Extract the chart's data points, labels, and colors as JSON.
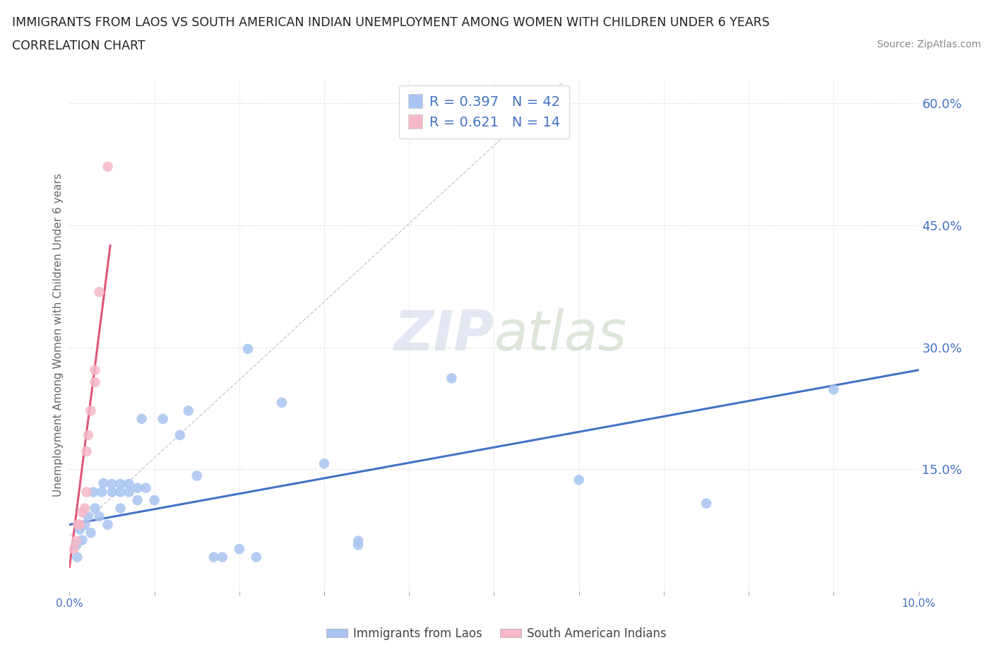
{
  "title_line1": "IMMIGRANTS FROM LAOS VS SOUTH AMERICAN INDIAN UNEMPLOYMENT AMONG WOMEN WITH CHILDREN UNDER 6 YEARS",
  "title_line2": "CORRELATION CHART",
  "source": "Source: ZipAtlas.com",
  "ylabel_label": "Unemployment Among Women with Children Under 6 years",
  "xmin": 0.0,
  "xmax": 0.1,
  "ymin": 0.0,
  "ymax": 0.63,
  "watermark_part1": "ZIP",
  "watermark_part2": "atlas",
  "legend_blue_label": "Immigrants from Laos",
  "legend_pink_label": "South American Indians",
  "R_blue": 0.397,
  "N_blue": 42,
  "R_pink": 0.621,
  "N_pink": 14,
  "blue_color": "#a8c4f0",
  "pink_color": "#f5b8c8",
  "blue_line_color": "#4472c4",
  "pink_line_color": "#e05578",
  "diag_color": "#cccccc",
  "grid_color": "#e8e8e8",
  "tick_label_color": "#4472c4",
  "title_color": "#222222",
  "source_color": "#888888",
  "ylabel_color": "#666666",
  "blue_scatter": [
    [
      0.0008,
      0.057
    ],
    [
      0.0009,
      0.042
    ],
    [
      0.0012,
      0.076
    ],
    [
      0.0015,
      0.063
    ],
    [
      0.0018,
      0.082
    ],
    [
      0.0022,
      0.092
    ],
    [
      0.0025,
      0.072
    ],
    [
      0.0028,
      0.122
    ],
    [
      0.003,
      0.102
    ],
    [
      0.0035,
      0.092
    ],
    [
      0.0038,
      0.122
    ],
    [
      0.004,
      0.133
    ],
    [
      0.0045,
      0.082
    ],
    [
      0.005,
      0.122
    ],
    [
      0.005,
      0.132
    ],
    [
      0.006,
      0.102
    ],
    [
      0.006,
      0.122
    ],
    [
      0.006,
      0.132
    ],
    [
      0.007,
      0.132
    ],
    [
      0.007,
      0.122
    ],
    [
      0.008,
      0.127
    ],
    [
      0.008,
      0.112
    ],
    [
      0.0085,
      0.212
    ],
    [
      0.009,
      0.127
    ],
    [
      0.01,
      0.112
    ],
    [
      0.011,
      0.212
    ],
    [
      0.013,
      0.192
    ],
    [
      0.014,
      0.222
    ],
    [
      0.015,
      0.142
    ],
    [
      0.017,
      0.042
    ],
    [
      0.018,
      0.042
    ],
    [
      0.02,
      0.052
    ],
    [
      0.021,
      0.298
    ],
    [
      0.022,
      0.042
    ],
    [
      0.025,
      0.232
    ],
    [
      0.03,
      0.157
    ],
    [
      0.034,
      0.057
    ],
    [
      0.034,
      0.062
    ],
    [
      0.045,
      0.262
    ],
    [
      0.06,
      0.137
    ],
    [
      0.075,
      0.108
    ],
    [
      0.09,
      0.248
    ]
  ],
  "pink_scatter": [
    [
      0.0005,
      0.052
    ],
    [
      0.0008,
      0.062
    ],
    [
      0.001,
      0.082
    ],
    [
      0.0012,
      0.082
    ],
    [
      0.0015,
      0.097
    ],
    [
      0.0018,
      0.102
    ],
    [
      0.002,
      0.122
    ],
    [
      0.002,
      0.172
    ],
    [
      0.0022,
      0.192
    ],
    [
      0.0025,
      0.222
    ],
    [
      0.003,
      0.257
    ],
    [
      0.003,
      0.272
    ],
    [
      0.0035,
      0.368
    ],
    [
      0.0045,
      0.522
    ]
  ],
  "blue_trendline": [
    [
      0.0,
      0.082
    ],
    [
      0.1,
      0.272
    ]
  ],
  "pink_trendline": [
    [
      0.0,
      0.03
    ],
    [
      0.0048,
      0.425
    ]
  ],
  "diag_line": [
    [
      0.0,
      0.068
    ],
    [
      0.058,
      0.625
    ]
  ]
}
